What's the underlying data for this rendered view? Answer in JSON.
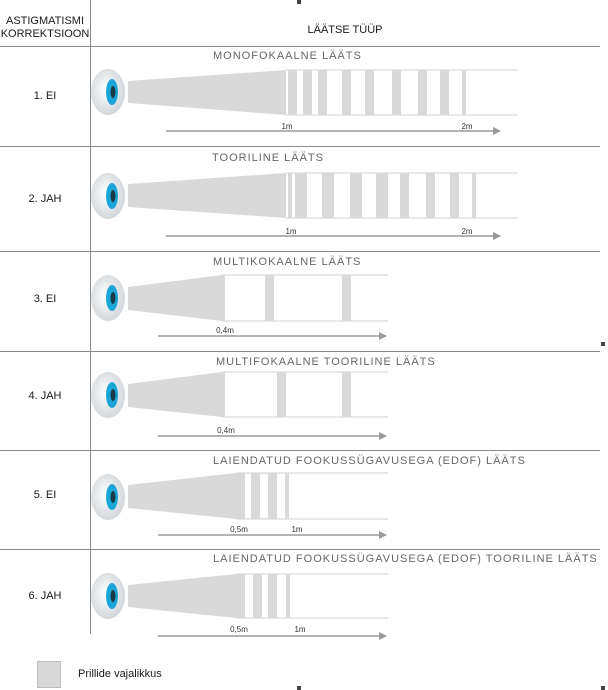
{
  "header": {
    "left_line1": "ASTIGMATISMI",
    "left_line2": "KORREKTSIOON",
    "right": "LÄÄTSE TÜÜP"
  },
  "colors": {
    "gray_band": "#d9d9d9",
    "eye_iris": "#1aa7d8",
    "eye_pupil": "#1b3a4a",
    "axis": "#9a9a9a"
  },
  "rows": [
    {
      "label": "1. EI",
      "title": "MONOFOKAALNE LÄÄTS",
      "ticks": [
        {
          "label": "1m"
        },
        {
          "label": "2m"
        }
      ]
    },
    {
      "label": "2. JAH",
      "title": "TOORILINE LÄÄTS",
      "ticks": [
        {
          "label": "1m"
        },
        {
          "label": "2m"
        }
      ]
    },
    {
      "label": "3. EI",
      "title": "MULTIKOKAALNE LÄÄTS",
      "ticks": [
        {
          "label": "0,4m"
        }
      ]
    },
    {
      "label": "4. JAH",
      "title": "MULTIFOKAALNE TOORILINE LÄÄTS",
      "ticks": [
        {
          "label": "0,4m"
        }
      ]
    },
    {
      "label": "5. EI",
      "title": "LAIENDATUD FOOKUSSÜGAVUSEGA (EDOF) LÄÄTS",
      "ticks": [
        {
          "label": "0,5m"
        },
        {
          "label": "1m"
        }
      ]
    },
    {
      "label": "6. JAH",
      "title": "LAIENDATUD FOOKUSSÜGAVUSEGA (EDOF) TOORILINE LÄÄTS",
      "ticks": [
        {
          "label": "0,5m"
        },
        {
          "label": "1m"
        }
      ]
    }
  ],
  "legend": {
    "label": "Prillide vajalikkus"
  }
}
